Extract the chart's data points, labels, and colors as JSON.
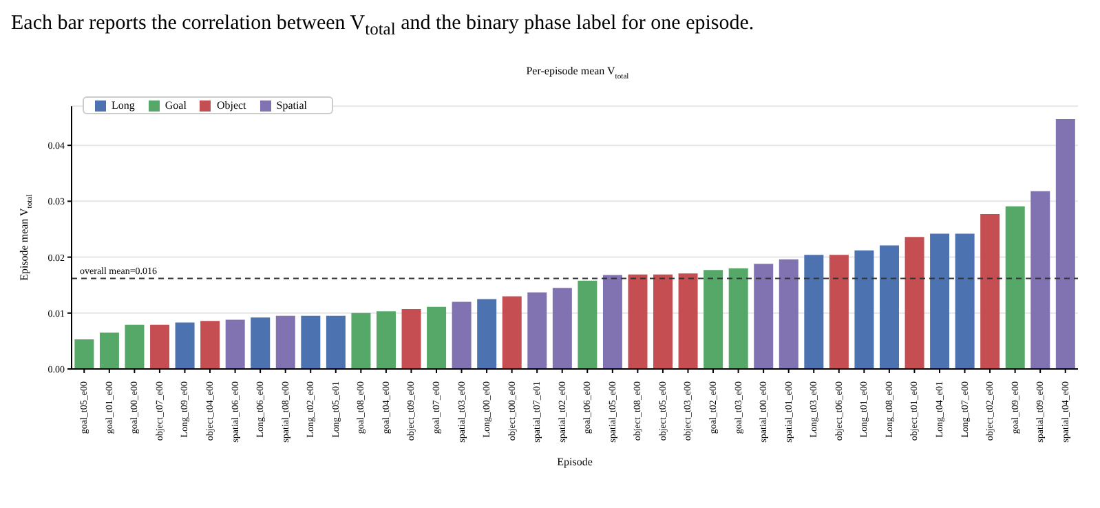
{
  "chart_data": {
    "type": "bar",
    "title": "Per-episode mean V$_{total}$",
    "annotations": [
      "Each bar reports the correlation between V$_{total}$ and the binary phase label for one episode."
    ],
    "xlabel": "Episode",
    "ylabel": "Episode mean V$_{total}$",
    "categories": [
      "goal_t05_e00",
      "goal_t01_e00",
      "goal_t00_e00",
      "object_t07_e00",
      "Long_t09_e00",
      "object_t04_e00",
      "spatial_t06_e00",
      "Long_t06_e00",
      "spatial_t08_e00",
      "Long_t02_e00",
      "Long_t05_e01",
      "goal_t08_e00",
      "goal_t04_e00",
      "object_t09_e00",
      "goal_t07_e00",
      "spatial_t03_e00",
      "Long_t00_e00",
      "object_t00_e00",
      "spatial_t07_e01",
      "spatial_t02_e00",
      "goal_t06_e00",
      "spatial_t05_e00",
      "object_t08_e00",
      "object_t05_e00",
      "object_t03_e00",
      "goal_t02_e00",
      "goal_t03_e00",
      "spatial_t00_e00",
      "spatial_t01_e00",
      "Long_t03_e00",
      "object_t06_e00",
      "Long_t01_e00",
      "Long_t08_e00",
      "object_t01_e00",
      "Long_t04_e01",
      "Long_t07_e00",
      "object_t02_e00",
      "goal_t09_e00",
      "spatial_t09_e00",
      "spatial_t04_e00"
    ],
    "stacked": true,
    "series": [
      {
        "name": "Long",
        "color": "#4c72b0",
        "values": [
          null,
          null,
          null,
          null,
          0.0083,
          null,
          null,
          0.0092,
          null,
          0.0095,
          0.0095,
          null,
          null,
          null,
          null,
          null,
          0.0125,
          null,
          null,
          null,
          null,
          null,
          null,
          null,
          null,
          null,
          null,
          null,
          null,
          0.0204,
          null,
          0.0212,
          0.0221,
          null,
          0.0242,
          0.0242,
          null,
          null,
          null,
          null
        ]
      },
      {
        "name": "Goal",
        "color": "#55a868",
        "values": [
          0.0053,
          0.0065,
          0.0079,
          null,
          null,
          null,
          null,
          null,
          null,
          null,
          null,
          0.01,
          0.0103,
          null,
          0.0111,
          null,
          null,
          null,
          null,
          null,
          0.0158,
          null,
          null,
          null,
          null,
          0.0177,
          0.018,
          null,
          null,
          null,
          null,
          null,
          null,
          null,
          null,
          null,
          null,
          0.0291,
          null,
          null
        ]
      },
      {
        "name": "Object",
        "color": "#c44e52",
        "values": [
          null,
          null,
          null,
          0.0079,
          null,
          0.0086,
          null,
          null,
          null,
          null,
          null,
          null,
          null,
          0.0107,
          null,
          null,
          null,
          0.013,
          null,
          null,
          null,
          null,
          0.0169,
          0.0169,
          0.0171,
          null,
          null,
          null,
          null,
          null,
          0.0204,
          null,
          null,
          0.0236,
          null,
          null,
          0.0277,
          null,
          null,
          null
        ]
      },
      {
        "name": "Spatial",
        "color": "#8172b2",
        "values": [
          null,
          null,
          null,
          null,
          null,
          null,
          0.0088,
          null,
          0.0095,
          null,
          null,
          null,
          null,
          null,
          null,
          0.012,
          null,
          null,
          0.0137,
          0.0145,
          null,
          0.0168,
          null,
          null,
          null,
          null,
          null,
          0.0188,
          0.0196,
          null,
          null,
          null,
          null,
          null,
          null,
          null,
          null,
          null,
          0.0318,
          0.0447
        ]
      }
    ],
    "ylim": [
      0,
      0.047
    ],
    "yticks": [
      {
        "value": 0,
        "label": "0.00"
      },
      {
        "value": 0.01,
        "label": "0.01"
      },
      {
        "value": 0.02,
        "label": "0.02"
      },
      {
        "value": 0.03,
        "label": "0.03"
      },
      {
        "value": 0.04,
        "label": "0.04"
      }
    ],
    "grid": "y",
    "legend": "top left",
    "ref_lines": [
      {
        "axis": "y",
        "value": 0.0162,
        "label": "overall mean=0.016",
        "color": "#333333",
        "line_style": "dashed"
      }
    ]
  }
}
